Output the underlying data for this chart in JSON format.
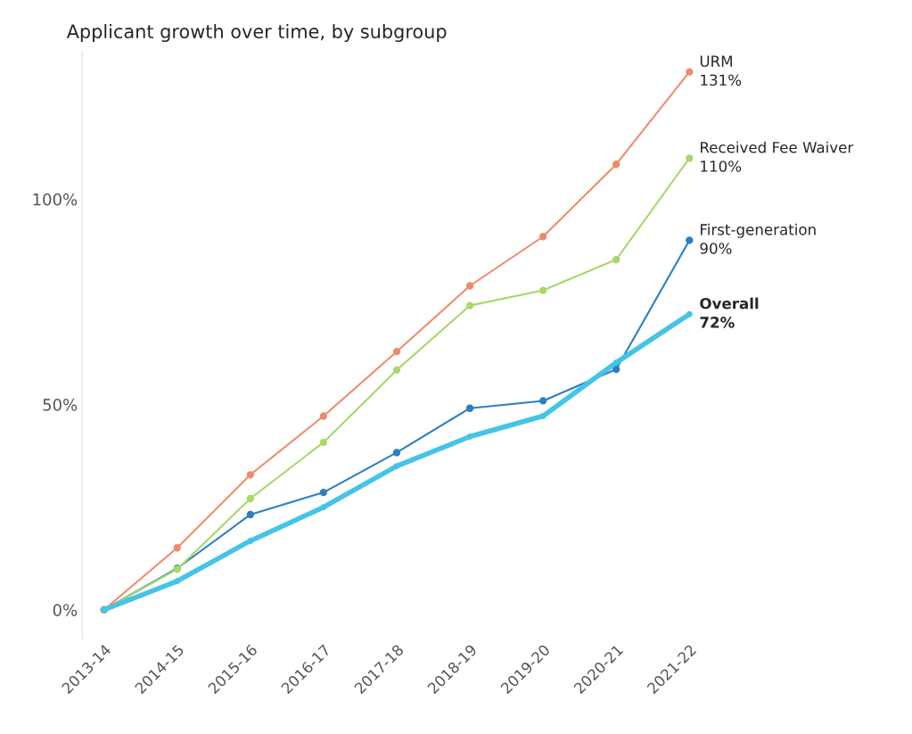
{
  "chart_data": {
    "type": "line",
    "title": "Applicant growth over time, by subgroup",
    "categories": [
      "2013-14",
      "2014-15",
      "2015-16",
      "2016-17",
      "2017-18",
      "2018-19",
      "2019-20",
      "2020-21",
      "2021-22"
    ],
    "series": [
      {
        "name": "URM",
        "color": "#f08a6c",
        "values": [
          0,
          15.1,
          32.9,
          47.2,
          62.9,
          78.9,
          90.9,
          108.5,
          131
        ],
        "value_labels": [
          null,
          null,
          null,
          null,
          null,
          null,
          null,
          null,
          "131%"
        ]
      },
      {
        "name": "Received Fee Waiver",
        "color": "#a8d86a",
        "values": [
          0,
          9.9,
          27.1,
          40.8,
          58.4,
          74.1,
          77.8,
          85.3,
          110
        ],
        "value_labels": [
          null,
          null,
          null,
          null,
          null,
          null,
          null,
          null,
          "110%"
        ]
      },
      {
        "name": "First-generation",
        "color": "#2a7fc4",
        "values": [
          0,
          10.1,
          23.2,
          28.6,
          38.3,
          49.1,
          50.9,
          58.6,
          90
        ],
        "value_labels": [
          null,
          null,
          null,
          null,
          null,
          null,
          null,
          null,
          "90%"
        ]
      },
      {
        "name": "Overall",
        "color": "#45c4e8",
        "values": [
          0,
          7.0,
          16.8,
          25.0,
          35.0,
          42.2,
          47.2,
          60.2,
          72
        ],
        "value_labels": [
          null,
          null,
          null,
          null,
          null,
          null,
          null,
          null,
          "72%"
        ]
      }
    ],
    "ylim": [
      -7,
      136
    ],
    "yticks": [
      {
        "value": 0,
        "label": "0%"
      },
      {
        "value": 50,
        "label": "50%"
      },
      {
        "value": 100,
        "label": "100%"
      }
    ],
    "grid": false,
    "legend": false,
    "marker": "circle",
    "line_style": "solid"
  }
}
